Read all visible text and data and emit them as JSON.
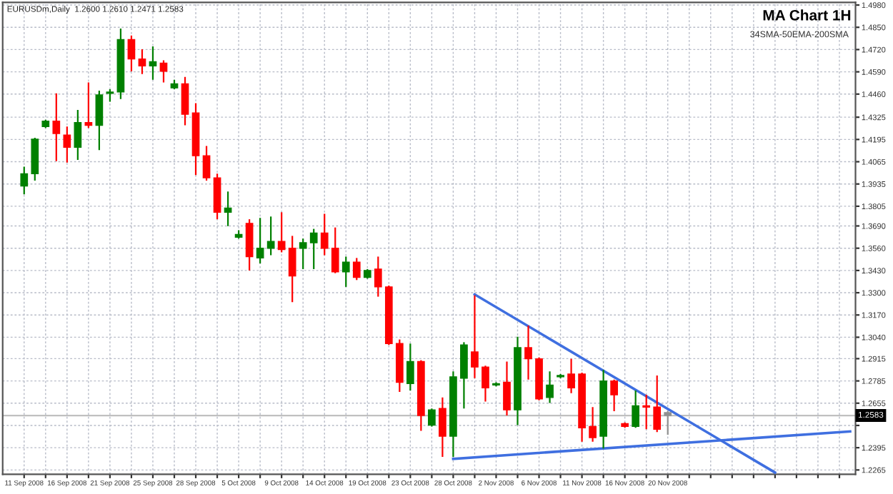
{
  "chart_data": {
    "type": "candlestick",
    "title": "MA Chart 1H",
    "subtitle": "34SMA-50EMA-200SMA",
    "annotations": [
      "EURUSDm,Daily  1.2600 1.2610 1.2471 1.2583"
    ],
    "categories": [
      "11 Sep 2008",
      null,
      null,
      null,
      "16 Sep 2008",
      null,
      null,
      null,
      "21 Sep 2008",
      null,
      null,
      null,
      "25 Sep 2008",
      null,
      null,
      null,
      "28 Sep 2008",
      null,
      null,
      null,
      "5 Oct 2008",
      null,
      null,
      null,
      "9 Oct 2008",
      null,
      null,
      null,
      "14 Oct 2008",
      null,
      null,
      null,
      "19 Oct 2008",
      null,
      null,
      null,
      "23 Oct 2008",
      null,
      null,
      null,
      "28 Oct 2008",
      null,
      null,
      null,
      "2 Nov 2008",
      null,
      null,
      null,
      "6 Nov 2008",
      null,
      null,
      null,
      "11 Nov 2008",
      null,
      null,
      null,
      "16 Nov 2008",
      null,
      null,
      null,
      "20 Nov 2008",
      null,
      null,
      null,
      null,
      null,
      null,
      null,
      null,
      null,
      null,
      null,
      null,
      null,
      null,
      null,
      null,
      null
    ],
    "ohlc": [
      [
        1.3923,
        1.4036,
        1.3874,
        1.3995
      ],
      [
        1.3995,
        1.4205,
        1.3955,
        1.4197
      ],
      [
        1.427,
        1.431,
        1.4262,
        1.4302
      ],
      [
        1.4302,
        1.4464,
        1.4068,
        1.423
      ],
      [
        1.4221,
        1.427,
        1.406,
        1.4149
      ],
      [
        1.4149,
        1.4367,
        1.4076,
        1.4294
      ],
      [
        1.4294,
        1.4528,
        1.4262,
        1.4278
      ],
      [
        1.4278,
        1.448,
        1.4133,
        1.4455
      ],
      [
        1.4464,
        1.4488,
        1.4415,
        1.4472
      ],
      [
        1.4472,
        1.4843,
        1.4431,
        1.4778
      ],
      [
        1.4778,
        1.4802,
        1.4593,
        1.4665
      ],
      [
        1.4665,
        1.4722,
        1.4577,
        1.4625
      ],
      [
        1.4625,
        1.4738,
        1.4544,
        1.4649
      ],
      [
        1.4641,
        1.4657,
        1.4528,
        1.4593
      ],
      [
        1.4496,
        1.4544,
        1.4488,
        1.452
      ],
      [
        1.452,
        1.456,
        1.4278,
        1.4342
      ],
      [
        1.435,
        1.4407,
        1.3987,
        1.41
      ],
      [
        1.41,
        1.4157,
        1.3955,
        1.3971
      ],
      [
        1.3971,
        1.3995,
        1.3729,
        1.377
      ],
      [
        1.377,
        1.3891,
        1.3689,
        1.3794
      ],
      [
        1.3624,
        1.3665,
        1.3616,
        1.364
      ],
      [
        1.3705,
        1.3729,
        1.343,
        1.3511
      ],
      [
        1.3503,
        1.3737,
        1.3471,
        1.356
      ],
      [
        1.356,
        1.3745,
        1.3519,
        1.36
      ],
      [
        1.36,
        1.377,
        1.3536,
        1.3552
      ],
      [
        1.356,
        1.3632,
        1.3245,
        1.3398
      ],
      [
        1.356,
        1.3616,
        1.3438,
        1.3592
      ],
      [
        1.3592,
        1.3673,
        1.3438,
        1.3649
      ],
      [
        1.3649,
        1.3761,
        1.3519,
        1.356
      ],
      [
        1.356,
        1.3681,
        1.3414,
        1.3422
      ],
      [
        1.3422,
        1.3511,
        1.3334,
        1.3479
      ],
      [
        1.3479,
        1.3503,
        1.3374,
        1.339
      ],
      [
        1.339,
        1.3438,
        1.3382,
        1.343
      ],
      [
        1.3438,
        1.3511,
        1.3277,
        1.3334
      ],
      [
        1.3334,
        1.3342,
        1.2995,
        1.3003
      ],
      [
        1.3003,
        1.3027,
        1.2721,
        1.2777
      ],
      [
        1.2769,
        1.3003,
        1.2729,
        1.2898
      ],
      [
        1.2898,
        1.2906,
        1.2494,
        1.2583
      ],
      [
        1.2527,
        1.2624,
        1.2519,
        1.2616
      ],
      [
        1.2624,
        1.2688,
        1.2341,
        1.2462
      ],
      [
        1.2462,
        1.2841,
        1.2341,
        1.2809
      ],
      [
        1.2801,
        1.3011,
        1.2624,
        1.2995
      ],
      [
        1.2954,
        1.3285,
        1.2801,
        1.2866
      ],
      [
        1.2866,
        1.2874,
        1.2664,
        1.2745
      ],
      [
        1.2761,
        1.2777,
        1.2753,
        1.2769
      ],
      [
        1.2777,
        1.2898,
        1.2583,
        1.2616
      ],
      [
        1.2616,
        1.3043,
        1.2527,
        1.2979
      ],
      [
        1.2979,
        1.3108,
        1.2793,
        1.2914
      ],
      [
        1.2914,
        1.2922,
        1.2672,
        1.268
      ],
      [
        1.2688,
        1.2841,
        1.2656,
        1.2761
      ],
      [
        1.2809,
        1.2825,
        1.2801,
        1.2817
      ],
      [
        1.2825,
        1.2914,
        1.2713,
        1.2745
      ],
      [
        1.2825,
        1.2833,
        1.243,
        1.2511
      ],
      [
        1.2519,
        1.2632,
        1.243,
        1.2454
      ],
      [
        1.2462,
        1.2849,
        1.239,
        1.2785
      ],
      [
        1.2785,
        1.2793,
        1.2608,
        1.2704
      ],
      [
        1.2535,
        1.2543,
        1.2511,
        1.2519
      ],
      [
        1.2519,
        1.2729,
        1.2511,
        1.264
      ],
      [
        1.264,
        1.2704,
        1.2503,
        1.2632
      ],
      [
        1.2632,
        1.2817,
        1.2486,
        1.2503
      ],
      [
        1.26,
        1.261,
        1.2471,
        1.2583
      ],
      null,
      null,
      null,
      null,
      null,
      null,
      null,
      null,
      null,
      null,
      null,
      null,
      null,
      null,
      null,
      null,
      null
    ],
    "colors": [
      "#008000",
      "#008000",
      "#008000",
      "#ff0000",
      "#ff0000",
      "#008000",
      "#ff0000",
      "#008000",
      "#008000",
      "#008000",
      "#ff0000",
      "#ff0000",
      "#008000",
      "#ff0000",
      "#008000",
      "#ff0000",
      "#ff0000",
      "#ff0000",
      "#ff0000",
      "#008000",
      "#008000",
      "#ff0000",
      "#008000",
      "#008000",
      "#ff0000",
      "#ff0000",
      "#008000",
      "#008000",
      "#ff0000",
      "#ff0000",
      "#008000",
      "#ff0000",
      "#008000",
      "#ff0000",
      "#ff0000",
      "#ff0000",
      "#008000",
      "#ff0000",
      "#008000",
      "#ff0000",
      "#008000",
      "#008000",
      "#ff0000",
      "#ff0000",
      "#008000",
      "#ff0000",
      "#008000",
      "#ff0000",
      "#ff0000",
      "#008000",
      "#008000",
      "#ff0000",
      "#ff0000",
      "#ff0000",
      "#008000",
      "#ff0000",
      "#ff0000",
      "#008000",
      "#ff0000",
      "#ff0000",
      "#909090",
      null,
      null,
      null,
      null,
      null,
      null,
      null,
      null,
      null,
      null,
      null,
      null,
      null,
      null,
      null,
      null,
      null
    ],
    "series": [
      {
        "type": "line",
        "color": "#3f6fe0",
        "values": [
          null,
          null,
          null,
          null,
          null,
          null,
          null,
          null,
          null,
          null,
          null,
          null,
          null,
          null,
          null,
          null,
          null,
          null,
          null,
          null,
          null,
          null,
          null,
          null,
          null,
          null,
          null,
          null,
          null,
          null,
          null,
          null,
          null,
          null,
          null,
          null,
          null,
          null,
          null,
          null,
          null,
          null,
          1.329,
          null,
          null,
          null,
          null,
          null,
          null,
          null,
          null,
          null,
          null,
          null,
          null,
          null,
          null,
          null,
          null,
          null,
          null,
          null,
          null,
          null,
          null,
          null,
          null,
          null,
          null,
          null,
          1.225,
          null,
          null,
          null,
          null,
          null,
          null,
          null
        ]
      },
      {
        "type": "line",
        "color": "#3f6fe0",
        "values": [
          null,
          null,
          null,
          null,
          null,
          null,
          null,
          null,
          null,
          null,
          null,
          null,
          null,
          null,
          null,
          null,
          null,
          null,
          null,
          null,
          null,
          null,
          null,
          null,
          null,
          null,
          null,
          null,
          null,
          null,
          null,
          null,
          null,
          null,
          null,
          null,
          null,
          null,
          null,
          null,
          1.233,
          null,
          null,
          null,
          null,
          null,
          null,
          null,
          null,
          null,
          null,
          null,
          null,
          null,
          null,
          null,
          null,
          null,
          null,
          null,
          null,
          null,
          null,
          null,
          null,
          null,
          null,
          null,
          null,
          null,
          null,
          null,
          null,
          null,
          null,
          null,
          null,
          1.249
        ]
      }
    ],
    "ylim": [
      1.224,
      1.4995
    ],
    "yticks": [
      {
        "value": 1.498,
        "label": "1.4980"
      },
      {
        "value": 1.485,
        "label": "1.4850"
      },
      {
        "value": 1.472,
        "label": "1.4720"
      },
      {
        "value": 1.459,
        "label": "1.4590"
      },
      {
        "value": 1.446,
        "label": "1.4460"
      },
      {
        "value": 1.4325,
        "label": "1.4325"
      },
      {
        "value": 1.4195,
        "label": "1.4195"
      },
      {
        "value": 1.4065,
        "label": "1.4065"
      },
      {
        "value": 1.3935,
        "label": "1.3935"
      },
      {
        "value": 1.3805,
        "label": "1.3805"
      },
      {
        "value": 1.369,
        "label": "1.3690"
      },
      {
        "value": 1.356,
        "label": "1.3560"
      },
      {
        "value": 1.343,
        "label": "1.3430"
      },
      {
        "value": 1.33,
        "label": "1.3300"
      },
      {
        "value": 1.317,
        "label": "1.3170"
      },
      {
        "value": 1.304,
        "label": "1.3040"
      },
      {
        "value": 1.2915,
        "label": "1.2915"
      },
      {
        "value": 1.2785,
        "label": "1.2785"
      },
      {
        "value": 1.2655,
        "label": "1.2655"
      },
      {
        "value": 1.2525,
        "label": null
      },
      {
        "value": 1.2395,
        "label": "1.2395"
      },
      {
        "value": 1.2265,
        "label": "1.2265"
      }
    ],
    "ref_lines": [
      {
        "axis": "y",
        "value": 1.2583,
        "label": "1.2583",
        "color": "#c0c0c0"
      }
    ],
    "grid": true,
    "legend": false
  }
}
